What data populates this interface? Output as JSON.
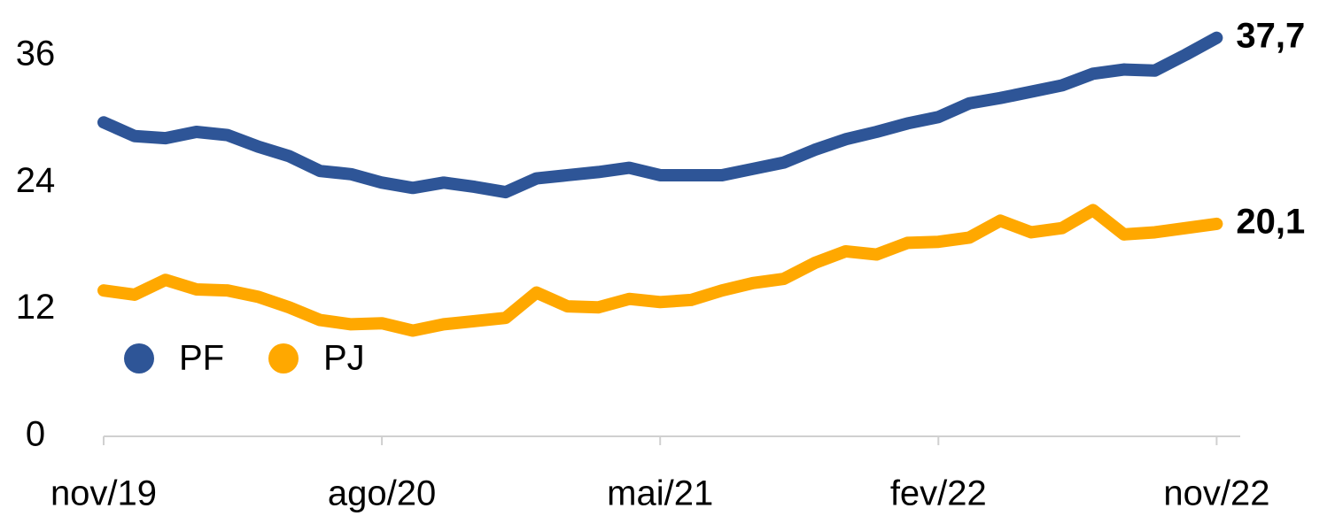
{
  "chart_data": {
    "type": "line",
    "categories": [
      "nov/19",
      null,
      null,
      null,
      null,
      null,
      null,
      null,
      null,
      "ago/20",
      null,
      null,
      null,
      null,
      null,
      null,
      null,
      null,
      "mai/21",
      null,
      null,
      null,
      null,
      null,
      null,
      null,
      null,
      "fev/22",
      null,
      null,
      null,
      null,
      null,
      null,
      null,
      null,
      "nov/22"
    ],
    "series": [
      {
        "name": "PF",
        "color": "#2e5597",
        "values": [
          29.7,
          28.4,
          28.2,
          28.8,
          28.5,
          27.4,
          26.5,
          25.1,
          24.8,
          24.0,
          23.5,
          24.0,
          23.6,
          23.1,
          24.4,
          24.7,
          25.0,
          25.4,
          24.7,
          24.7,
          24.7,
          25.3,
          25.9,
          27.1,
          28.1,
          28.8,
          29.6,
          30.2,
          31.5,
          32.0,
          32.6,
          33.2,
          34.3,
          34.7,
          34.6,
          36.1,
          37.7
        ],
        "value_labels": [
          null,
          null,
          null,
          null,
          null,
          null,
          null,
          null,
          null,
          null,
          null,
          null,
          null,
          null,
          null,
          null,
          null,
          null,
          null,
          null,
          null,
          null,
          null,
          null,
          null,
          null,
          null,
          null,
          null,
          null,
          null,
          null,
          null,
          null,
          null,
          null,
          "37,7"
        ]
      },
      {
        "name": "PJ",
        "color": "#ffa800",
        "values": [
          13.8,
          13.4,
          14.8,
          13.9,
          13.8,
          13.2,
          12.2,
          11.0,
          10.6,
          10.7,
          10.0,
          10.6,
          10.9,
          11.2,
          13.6,
          12.3,
          12.2,
          13.0,
          12.7,
          12.9,
          13.8,
          14.5,
          14.9,
          16.4,
          17.5,
          17.2,
          18.3,
          18.4,
          18.8,
          20.4,
          19.3,
          19.7,
          21.4,
          19.1,
          19.3,
          19.7,
          20.1
        ],
        "value_labels": [
          null,
          null,
          null,
          null,
          null,
          null,
          null,
          null,
          null,
          null,
          null,
          null,
          null,
          null,
          null,
          null,
          null,
          null,
          null,
          null,
          null,
          null,
          null,
          null,
          null,
          null,
          null,
          null,
          null,
          null,
          null,
          null,
          null,
          null,
          null,
          null,
          "20,1"
        ]
      }
    ],
    "ylim": [
      0,
      36
    ],
    "yticks": [
      0,
      12,
      24,
      36
    ],
    "grid": false,
    "legend": "left"
  }
}
